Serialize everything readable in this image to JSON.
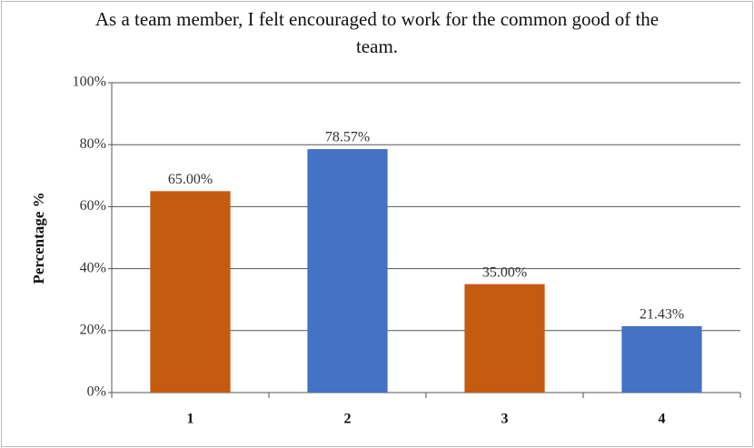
{
  "chart_data": {
    "type": "bar",
    "title": "As a team member, I felt encouraged to work for the common good of the team.",
    "ylabel": "Percentage %",
    "categories": [
      "1",
      "2",
      "3",
      "4"
    ],
    "values": [
      65,
      78.57,
      35,
      21.43
    ],
    "value_labels": [
      "65.00%",
      "78.57%",
      "35.00%",
      "21.43%"
    ],
    "colors": [
      "#c55a11",
      "#4472c4",
      "#c55a11",
      "#4472c4"
    ],
    "ylim": [
      0,
      100
    ],
    "yticks": [
      {
        "value": 0,
        "label": "0%"
      },
      {
        "value": 20,
        "label": "20%"
      },
      {
        "value": 40,
        "label": "40%"
      },
      {
        "value": 60,
        "label": "60%"
      },
      {
        "value": 80,
        "label": "80%"
      },
      {
        "value": 100,
        "label": "100%"
      }
    ],
    "grid": true
  }
}
